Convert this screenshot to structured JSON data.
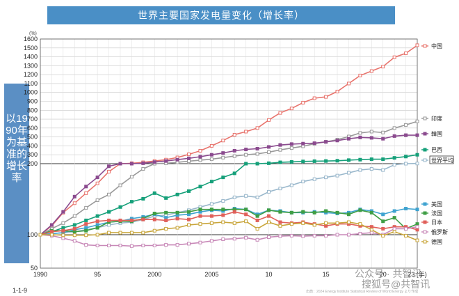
{
  "chart_data": {
    "type": "line",
    "title": "世界主要国家发电量变化（增长率）",
    "ylabel": "以1990年为基准的增长率",
    "yunit": "(%)",
    "y_scale": "log",
    "ylim": [
      50,
      1600
    ],
    "y_ticks": [
      50,
      100,
      200,
      300,
      400,
      500,
      600,
      700,
      800,
      900,
      1000,
      1100,
      1200,
      1300,
      1400,
      1500,
      1600
    ],
    "x": [
      1990,
      1991,
      1992,
      1993,
      1994,
      1995,
      1996,
      1997,
      1998,
      1999,
      2000,
      2001,
      2002,
      2003,
      2004,
      2005,
      2006,
      2007,
      2008,
      2009,
      2010,
      2011,
      2012,
      2013,
      2014,
      2015,
      2016,
      2017,
      2018,
      2019,
      2020,
      2021,
      2022,
      2023
    ],
    "x_tick_labels": [
      {
        "x": 1990,
        "label": "1990"
      },
      {
        "x": 1995,
        "label": "95"
      },
      {
        "x": 2000,
        "label": "2000"
      },
      {
        "x": 2005,
        "label": "2005"
      },
      {
        "x": 2010,
        "label": "10"
      },
      {
        "x": 2015,
        "label": "15"
      },
      {
        "x": 2020,
        "label": "20"
      },
      {
        "x": 2023,
        "label": "23 (年)"
      }
    ],
    "grid": true,
    "legend": "right",
    "series": [
      {
        "name": "中国",
        "color": "#e8746d",
        "fill": "#ffffff",
        "values": [
          100,
          109,
          124,
          136,
          150,
          165,
          185,
          200,
          205,
          215,
          230,
          245,
          270,
          305,
          345,
          400,
          460,
          525,
          560,
          600,
          690,
          770,
          820,
          885,
          935,
          950,
          1010,
          1100,
          1190,
          1240,
          1290,
          1395,
          1440,
          1530
        ]
      },
      {
        "name": "印度",
        "color": "#9a9a9a",
        "fill": "#ffffff",
        "values": [
          100,
          106,
          112,
          120,
          130,
          140,
          148,
          162,
          176,
          190,
          200,
          205,
          215,
          228,
          240,
          250,
          268,
          285,
          300,
          310,
          330,
          355,
          375,
          395,
          425,
          445,
          470,
          505,
          545,
          560,
          550,
          600,
          635,
          675
        ]
      },
      {
        "name": "韓国",
        "color": "#8b4b8f",
        "fill": "#8b4b8f",
        "values": [
          100,
          110,
          125,
          145,
          160,
          175,
          195,
          200,
          200,
          205,
          218,
          230,
          245,
          260,
          278,
          300,
          320,
          345,
          360,
          368,
          388,
          410,
          420,
          425,
          430,
          445,
          460,
          480,
          495,
          490,
          480,
          510,
          520,
          520
        ]
      },
      {
        "name": "巴西",
        "color": "#16a07a",
        "fill": "#16a07a",
        "values": [
          100,
          103,
          107,
          110,
          115,
          120,
          125,
          131,
          138,
          142,
          150,
          143,
          148,
          153,
          160,
          168,
          175,
          182,
          200,
          200,
          205,
          215,
          220,
          225,
          228,
          230,
          233,
          240,
          245,
          250,
          250,
          265,
          280,
          300
        ]
      },
      {
        "name": "世界平均",
        "color": "#9ab8cc",
        "fill": "#ffffff",
        "values": [
          100,
          101,
          102,
          103,
          105,
          107,
          110,
          112,
          113,
          116,
          120,
          121,
          124,
          127,
          131,
          135,
          139,
          144,
          146,
          144,
          152,
          157,
          162,
          168,
          172,
          175,
          178,
          183,
          188,
          190,
          188,
          198,
          200,
          202
        ]
      },
      {
        "name": "美国",
        "color": "#3fa3d0",
        "fill": "#3fa3d0",
        "values": [
          100,
          101,
          102,
          105,
          107,
          110,
          113,
          114,
          117,
          119,
          122,
          118,
          121,
          122,
          125,
          127,
          126,
          129,
          128,
          122,
          127,
          126,
          124,
          124,
          125,
          124,
          123,
          124,
          128,
          126,
          122,
          126,
          129,
          128
        ]
      },
      {
        "name": "法国",
        "color": "#3f9e45",
        "fill": "#3f9e45",
        "values": [
          100,
          104,
          104,
          103,
          104,
          107,
          113,
          114,
          114,
          117,
          123,
          124,
          124,
          125,
          128,
          128,
          128,
          128,
          128,
          120,
          127,
          125,
          124,
          125,
          124,
          126,
          124,
          122,
          127,
          124,
          114,
          118,
          106,
          111
        ]
      },
      {
        "name": "日本",
        "color": "#e0605a",
        "fill": "#e0605a",
        "values": [
          100,
          103,
          104,
          106,
          111,
          114,
          115,
          115,
          115,
          116,
          116,
          115,
          117,
          116,
          120,
          120,
          121,
          125,
          122,
          115,
          120,
          113,
          112,
          113,
          111,
          109,
          111,
          111,
          109,
          108,
          106,
          108,
          108,
          105
        ]
      },
      {
        "name": "俄罗斯",
        "color": "#c889b8",
        "fill": "#ffffff",
        "values": [
          100,
          98,
          93,
          88,
          81,
          80,
          80,
          80,
          79,
          80,
          80,
          81,
          81,
          83,
          85,
          88,
          91,
          92,
          94,
          90,
          95,
          97,
          98,
          97,
          98,
          98,
          100,
          100,
          101,
          102,
          100,
          106,
          106,
          108
        ]
      },
      {
        "name": "德国",
        "color": "#c8a53a",
        "fill": "#ffffff",
        "values": [
          100,
          100,
          99,
          99,
          99,
          100,
          102,
          102,
          102,
          102,
          104,
          106,
          107,
          110,
          111,
          112,
          113,
          112,
          114,
          106,
          113,
          109,
          111,
          112,
          110,
          112,
          112,
          113,
          111,
          105,
          98,
          103,
          98,
          89
        ]
      }
    ]
  },
  "footer": {
    "page_number": "1-1-9",
    "source": "出典：2024 Energy Institute Statistical Review of World Energy より作成"
  },
  "watermark": {
    "text1": "公众号 · 共智讯",
    "text2": "搜狐号@共智讯"
  }
}
